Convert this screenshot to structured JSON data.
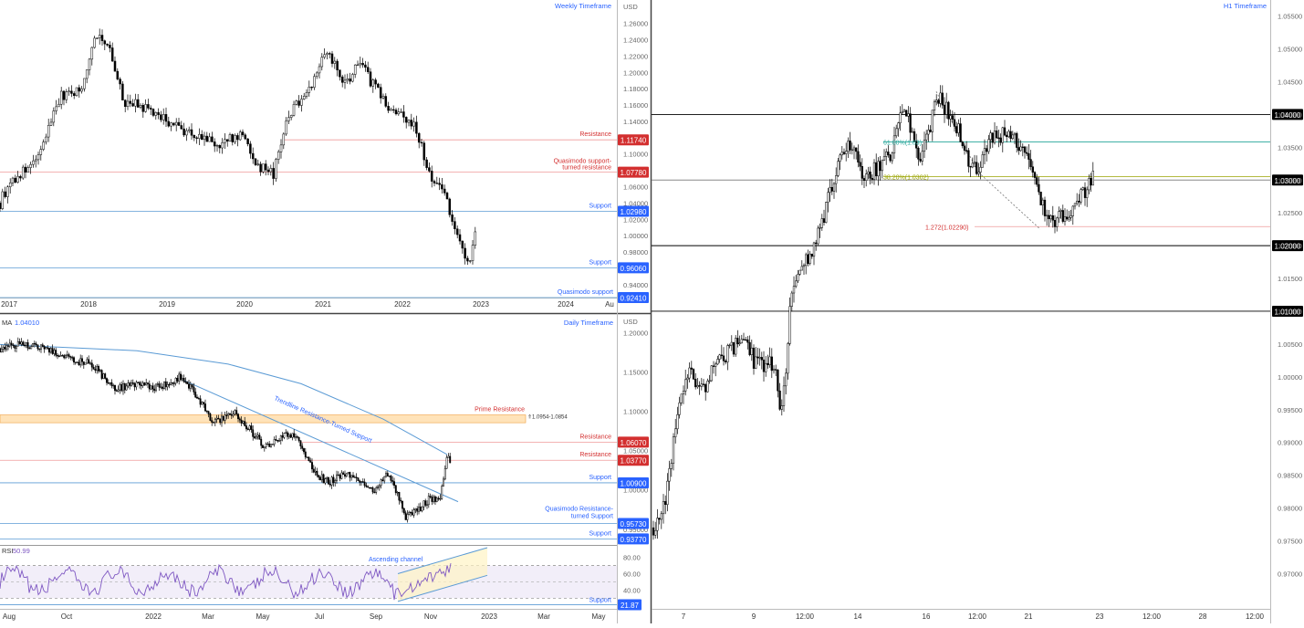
{
  "colors": {
    "up": "#ffffff",
    "down": "#000000",
    "blue": "#2962ff",
    "blueLine": "#5b9bd5",
    "red": "#d32f2f",
    "redLine": "#ef9a9a",
    "olive": "#9aa400",
    "teal": "#26a69a",
    "rsi": "#7e57c2",
    "zone": "#ffcc80",
    "axis": "#666666",
    "grid": "#e6e6e6"
  },
  "chart_data": [
    {
      "id": "weekly",
      "type": "candlestick",
      "title": "Weekly Timeframe",
      "currency": "USD",
      "ylim": [
        0.9241,
        1.2798
      ],
      "y_ticks": [
        "1.26000",
        "1.24000",
        "1.22000",
        "1.20000",
        "1.18000",
        "1.16000",
        "1.14000",
        "1.12000",
        "1.10000",
        "1.08000",
        "1.06000",
        "1.04000",
        "1.02000",
        "1.00000",
        "0.98000",
        "0.96000",
        "0.94000"
      ],
      "x_ticks": [
        "2017",
        "2018",
        "2019",
        "2020",
        "2021",
        "2022",
        "2023",
        "2024",
        "Au"
      ],
      "levels": [
        {
          "label": "Resistance",
          "value": "1.11740",
          "color": "red"
        },
        {
          "label": "Quasimodo support-turned resistance",
          "value": "1.07780",
          "color": "red"
        },
        {
          "label": "Support",
          "value": "1.02980",
          "color": "blue"
        },
        {
          "label": "Support",
          "value": "0.96060",
          "color": "blue"
        },
        {
          "label": "Quasimodo support",
          "value": "0.92410",
          "color": "blue"
        }
      ],
      "path": [
        [
          0,
          1.04
        ],
        [
          10,
          1.065
        ],
        [
          40,
          1.09
        ],
        [
          65,
          1.17
        ],
        [
          90,
          1.18
        ],
        [
          105,
          1.25
        ],
        [
          118,
          1.235
        ],
        [
          135,
          1.165
        ],
        [
          160,
          1.155
        ],
        [
          200,
          1.13
        ],
        [
          240,
          1.11
        ],
        [
          265,
          1.125
        ],
        [
          283,
          1.085
        ],
        [
          300,
          1.075
        ],
        [
          315,
          1.145
        ],
        [
          340,
          1.185
        ],
        [
          358,
          1.228
        ],
        [
          378,
          1.185
        ],
        [
          393,
          1.212
        ],
        [
          410,
          1.183
        ],
        [
          430,
          1.15
        ],
        [
          455,
          1.137
        ],
        [
          470,
          1.075
        ],
        [
          485,
          1.06
        ],
        [
          500,
          1.0
        ],
        [
          512,
          0.965
        ],
        [
          520,
          0.99
        ],
        [
          523,
          1.035
        ]
      ]
    },
    {
      "id": "daily",
      "type": "candlestick",
      "title": "Daily Timeframe",
      "currency": "USD",
      "ma_label": "MA",
      "ma_value": "1.04010",
      "ylim": [
        0.93,
        1.2144
      ],
      "y_ticks": [
        "1.20000",
        "1.15000",
        "1.10000",
        "1.05000",
        "1.00000",
        "0.95000"
      ],
      "x_ticks": [
        "Aug",
        "Oct",
        "2022",
        "Mar",
        "May",
        "Jul",
        "Sep",
        "Nov",
        "2023",
        "Mar",
        "May"
      ],
      "levels": [
        {
          "label": "Resistance",
          "value": "1.06070",
          "color": "red"
        },
        {
          "label": "Resistance",
          "value": "1.03770",
          "color": "red"
        },
        {
          "label": "Support",
          "value": "1.00900",
          "color": "blue"
        },
        {
          "label": "Quasimodo Resistance-turned Support",
          "value": "0.95730",
          "color": "blue"
        },
        {
          "label": "Support",
          "value": "0.93770",
          "color": "blue"
        }
      ],
      "zone": {
        "label": "Prime Resistance",
        "range_text": "⇑1.0954-1.0854",
        "top": 1.0954,
        "bottom": 1.0854
      },
      "trendline_label": "Trendline Resistance-Turned Support",
      "path": [
        [
          0,
          1.18
        ],
        [
          20,
          1.185
        ],
        [
          50,
          1.18
        ],
        [
          80,
          1.165
        ],
        [
          100,
          1.16
        ],
        [
          125,
          1.13
        ],
        [
          150,
          1.133
        ],
        [
          175,
          1.13
        ],
        [
          200,
          1.145
        ],
        [
          215,
          1.12
        ],
        [
          235,
          1.085
        ],
        [
          255,
          1.1
        ],
        [
          275,
          1.075
        ],
        [
          290,
          1.055
        ],
        [
          310,
          1.07
        ],
        [
          325,
          1.07
        ],
        [
          345,
          1.02
        ],
        [
          360,
          1.01
        ],
        [
          380,
          1.02
        ],
        [
          395,
          1.01
        ],
        [
          410,
          1.0
        ],
        [
          425,
          1.02
        ],
        [
          438,
          0.99
        ],
        [
          445,
          0.965
        ],
        [
          458,
          0.975
        ],
        [
          472,
          0.99
        ],
        [
          482,
          0.985
        ],
        [
          490,
          1.045
        ],
        [
          494,
          1.035
        ]
      ],
      "ma_path": [
        [
          0,
          1.185
        ],
        [
          150,
          1.177
        ],
        [
          250,
          1.16
        ],
        [
          330,
          1.135
        ],
        [
          420,
          1.09
        ],
        [
          490,
          1.045
        ]
      ],
      "trendline": [
        [
          200,
          1.14
        ],
        [
          502,
          0.985
        ]
      ],
      "rsi": {
        "label": "RSI",
        "value": "50.99",
        "ylim": [
          18,
          92
        ],
        "y_ticks": [
          "80.00",
          "60.00",
          "40.00"
        ],
        "support_label": "Support",
        "support_value": "21.87",
        "channel_label": "Ascending channel",
        "upper_band": 70,
        "lower_band": 30
      }
    },
    {
      "id": "h1",
      "type": "candlestick",
      "title": "H1 Timeframe",
      "ylim": [
        0.967,
        1.0555
      ],
      "y_ticks": [
        "1.05500",
        "1.05000",
        "1.04500",
        "1.04000",
        "1.03500",
        "1.03000",
        "1.02500",
        "1.02000",
        "1.01500",
        "1.01000",
        "1.00500",
        "1.00000",
        "0.99500",
        "0.99000",
        "0.98500",
        "0.98000",
        "0.97500",
        "0.97000"
      ],
      "x_ticks": [
        "7",
        "9",
        "12:00",
        "14",
        "16",
        "12:00",
        "21",
        "23",
        "12:00",
        "28",
        "12:00"
      ],
      "levels": [
        {
          "label": "",
          "value": "1.04000",
          "color": "black"
        },
        {
          "label": "",
          "value": "1.03000",
          "color": "blue"
        },
        {
          "label": "",
          "value": "1.02000",
          "color": "black"
        },
        {
          "label": "",
          "value": "1.01000",
          "color": "black"
        }
      ],
      "fib_labels": [
        "61.80%(1.03)",
        "38.20%(1.0302)",
        "1.272(1.02290)"
      ],
      "path": [
        [
          0,
          0.977
        ],
        [
          12,
          0.98
        ],
        [
          25,
          0.993
        ],
        [
          40,
          1.001
        ],
        [
          55,
          0.998
        ],
        [
          68,
          1.0015
        ],
        [
          88,
          1.0045
        ],
        [
          100,
          1.006
        ],
        [
          110,
          1.0025
        ],
        [
          120,
          1.0015
        ],
        [
          132,
          1.002
        ],
        [
          140,
          0.9945
        ],
        [
          145,
          1.0
        ],
        [
          150,
          1.013
        ],
        [
          160,
          1.016
        ],
        [
          175,
          1.019
        ],
        [
          185,
          1.0235
        ],
        [
          200,
          1.0315
        ],
        [
          212,
          1.0355
        ],
        [
          220,
          1.034
        ],
        [
          232,
          1.0305
        ],
        [
          245,
          1.032
        ],
        [
          260,
          1.0335
        ],
        [
          268,
          1.0385
        ],
        [
          275,
          1.0415
        ],
        [
          285,
          1.037
        ],
        [
          292,
          1.0315
        ],
        [
          298,
          1.036
        ],
        [
          312,
          1.0425
        ],
        [
          330,
          1.039
        ],
        [
          345,
          1.0335
        ],
        [
          355,
          1.031
        ],
        [
          365,
          1.0355
        ],
        [
          375,
          1.037
        ],
        [
          390,
          1.0365
        ],
        [
          400,
          1.0355
        ],
        [
          412,
          1.034
        ],
        [
          420,
          1.0285
        ],
        [
          432,
          1.0235
        ],
        [
          445,
          1.024
        ],
        [
          462,
          1.0262
        ],
        [
          473,
          1.0285
        ],
        [
          482,
          1.031
        ]
      ]
    }
  ]
}
